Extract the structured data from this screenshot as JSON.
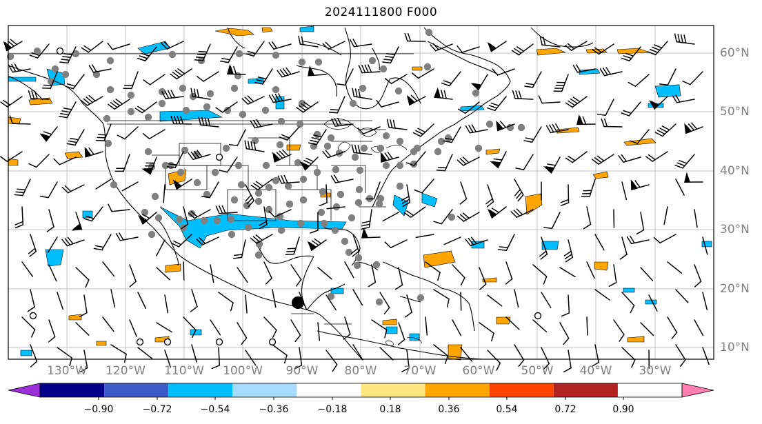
{
  "title": "2024111800 F000",
  "lat_labels": [
    "60°N",
    "50°N",
    "40°N",
    "30°N",
    "20°N",
    "10°N"
  ],
  "lon_labels": [
    "130°W",
    "120°W",
    "110°W",
    "100°W",
    "90°W",
    "80°W",
    "70°W",
    "60°W",
    "50°W",
    "40°W",
    "30°W"
  ],
  "colorbar": {
    "colors": [
      "#9b30d9",
      "#00008b",
      "#3a5bc8",
      "#00bfff",
      "#a8dcff",
      "#ffffff",
      "#ffe680",
      "#ffa500",
      "#ff4500",
      "#b22222",
      "#ff80b0"
    ],
    "ticks": [
      "−0.90",
      "−0.72",
      "−0.54",
      "−0.36",
      "−0.18",
      "0.18",
      "0.36",
      "0.54",
      "0.72",
      "0.90"
    ]
  },
  "map": {
    "graticule_color": "#c0c0c0",
    "coast_color": "#000000",
    "station_color": "#808080",
    "marker_symbols": [
      "filled-grey-dot",
      "open-circle",
      "large-black-dot"
    ],
    "wind_symbol": "wind-barb",
    "positive_fill": "#ffa500",
    "negative_fill": "#00bfff"
  }
}
